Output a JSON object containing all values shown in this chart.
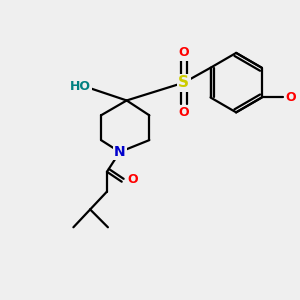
{
  "background_color": "#efefef",
  "bond_color": "#000000",
  "atom_colors": {
    "O": "#ff0000",
    "N": "#0000cc",
    "S": "#cccc00",
    "HO": "#008080"
  },
  "figsize": [
    3.0,
    3.0
  ],
  "dpi": 100
}
